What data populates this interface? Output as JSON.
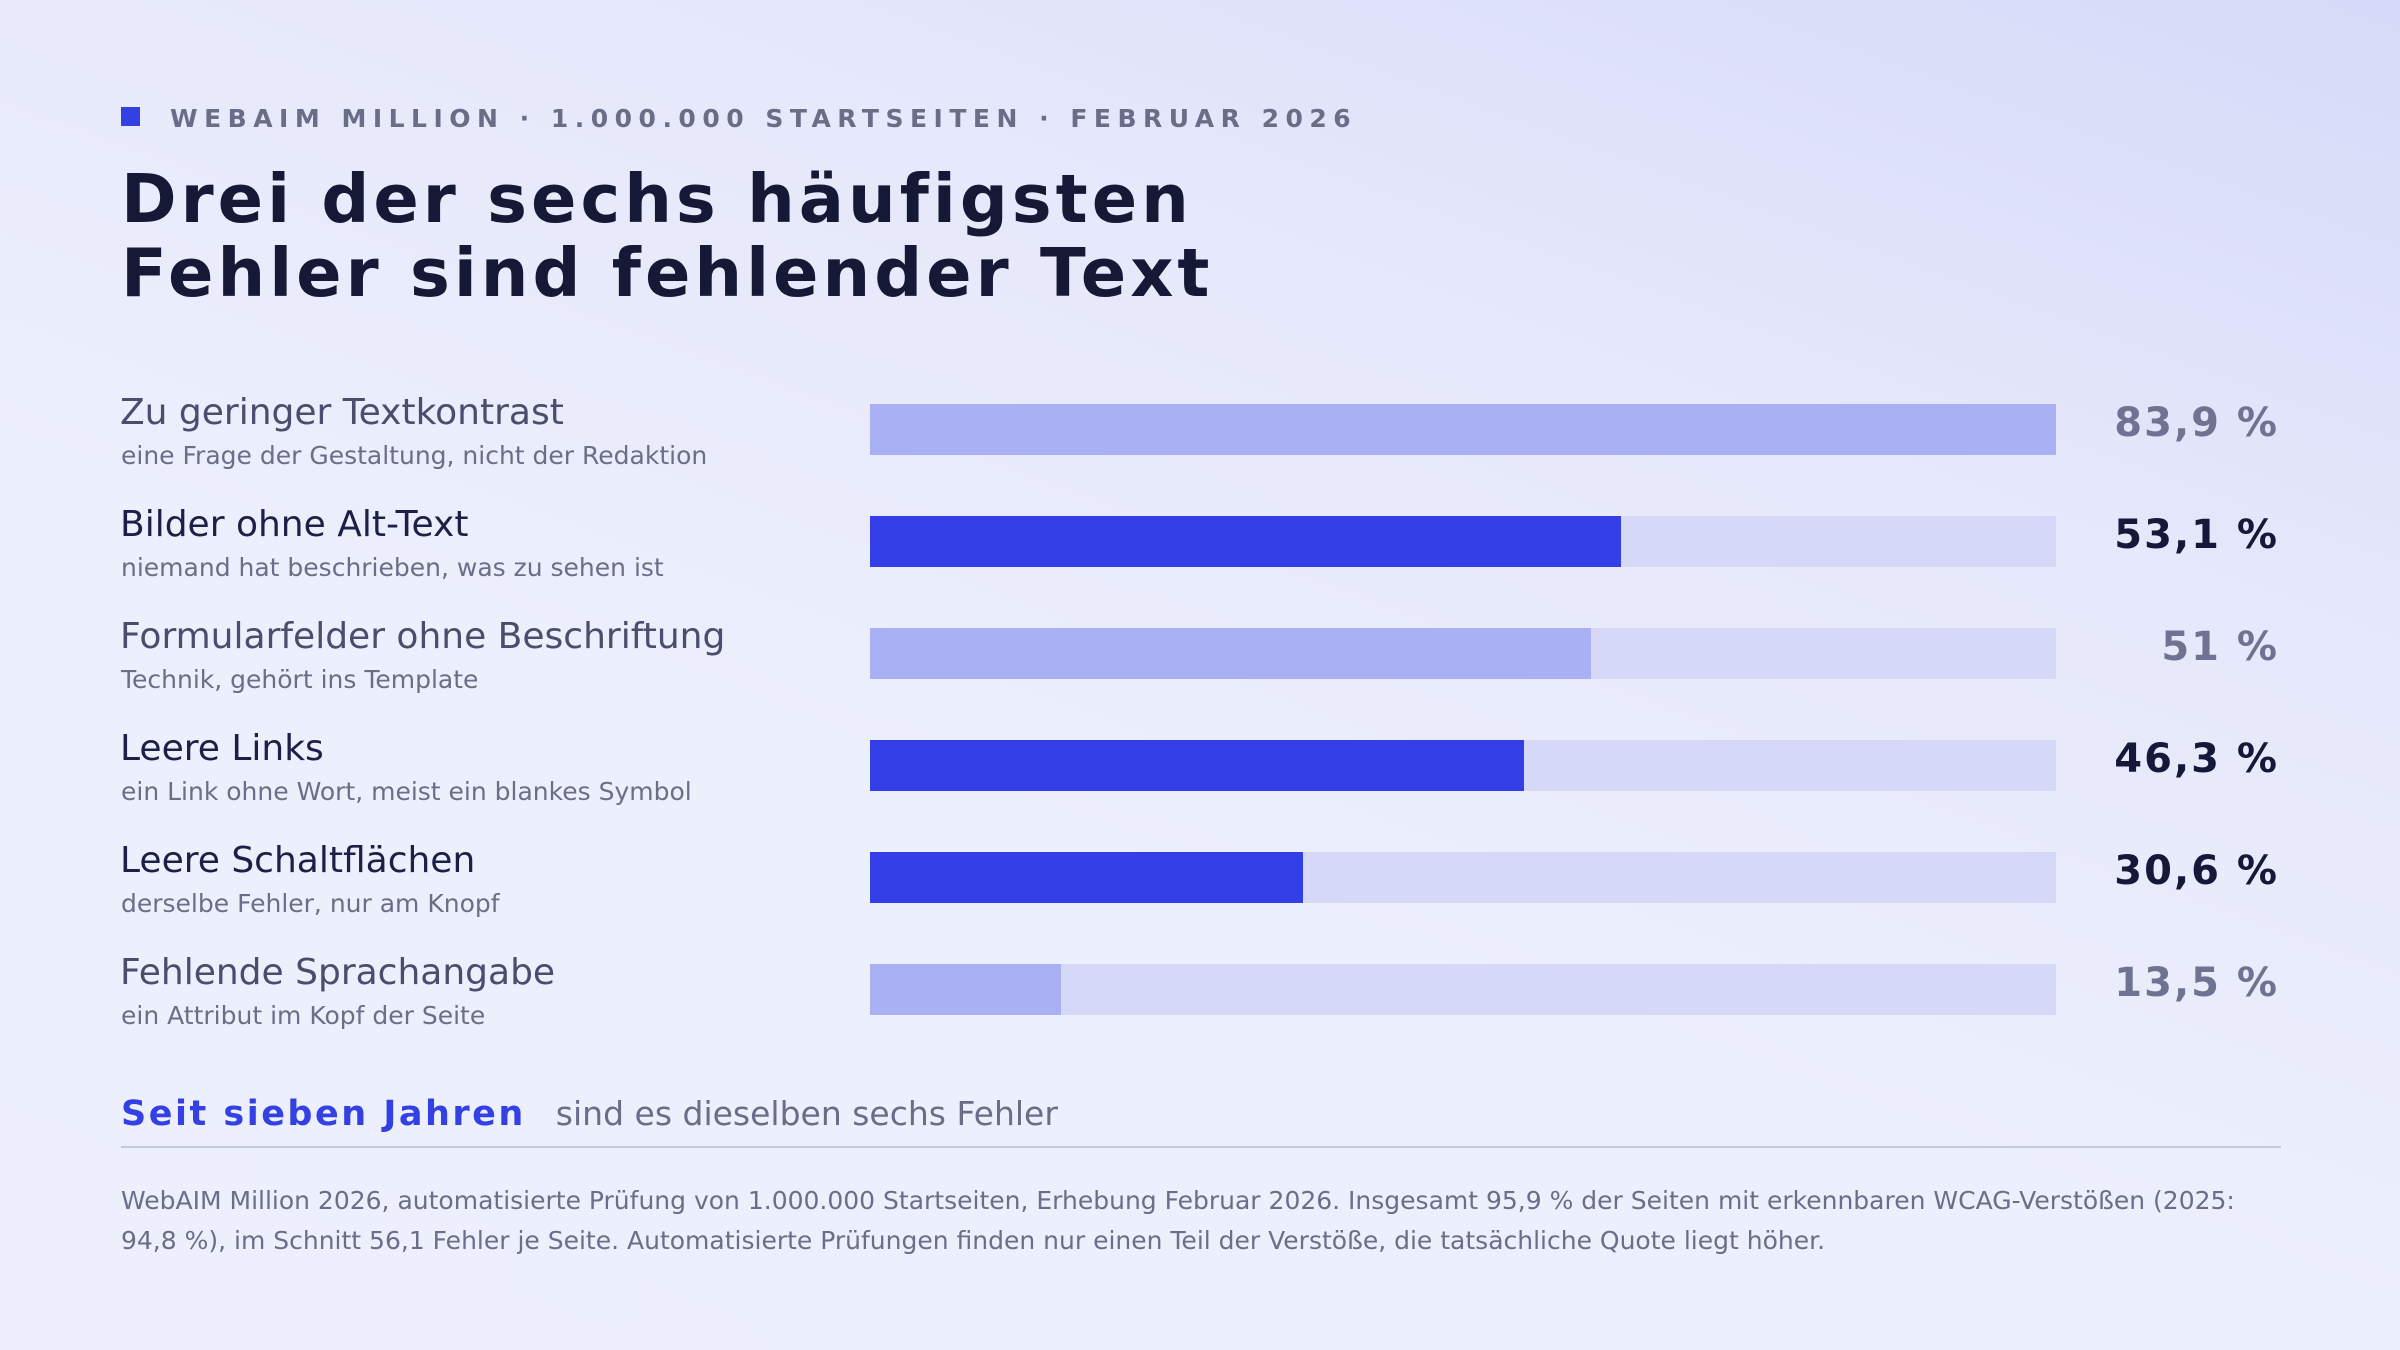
{
  "eyebrow": "WEBAIM MILLION · 1.000.000 STARTSEITEN · FEBRUAR 2026",
  "headline": {
    "line1": "Drei der sechs häufigsten",
    "line2": "Fehler sind fehlender Text"
  },
  "colors": {
    "accent": "#333ee6",
    "muted_bar": "#a9b0f3",
    "track": "#d5d8f7"
  },
  "chart_data": {
    "type": "bar",
    "orientation": "horizontal",
    "xlim": [
      0,
      83.9
    ],
    "categories": [
      "Zu geringer Textkontrast",
      "Bilder ohne Alt-Text",
      "Formularfelder ohne Beschriftung",
      "Leere Links",
      "Leere Schaltflächen",
      "Fehlende Sprachangabe"
    ],
    "rows": [
      {
        "label": "Zu geringer Textkontrast",
        "sub": "eine Frage der Gestaltung, nicht der Redaktion",
        "value": 83.9,
        "value_label": "83,9 %",
        "highlight": false
      },
      {
        "label": "Bilder ohne Alt-Text",
        "sub": "niemand hat beschrieben, was zu sehen ist",
        "value": 53.1,
        "value_label": "53,1 %",
        "highlight": true
      },
      {
        "label": "Formularfelder ohne Beschriftung",
        "sub": "Technik, gehört ins Template",
        "value": 51,
        "value_label": "51 %",
        "highlight": false
      },
      {
        "label": "Leere Links",
        "sub": "ein Link ohne Wort, meist ein blankes Symbol",
        "value": 46.3,
        "value_label": "46,3 %",
        "highlight": true
      },
      {
        "label": "Leere Schaltflächen",
        "sub": "derselbe Fehler, nur am Knopf",
        "value": 30.6,
        "value_label": "30,6 %",
        "highlight": true
      },
      {
        "label": "Fehlende Sprachangabe",
        "sub": "ein Attribut im Kopf der Seite",
        "value": 13.5,
        "value_label": "13,5 %",
        "highlight": false
      }
    ]
  },
  "footer": {
    "accent": "Seit sieben Jahren",
    "rest": "sind es dieselben sechs Fehler",
    "note": "WebAIM Million 2026, automatisierte Prüfung von 1.000.000 Startseiten, Erhebung Februar 2026. Insgesamt 95,9 % der Seiten mit erkennbaren WCAG-Verstößen (2025: 94,8 %), im Schnitt 56,1 Fehler je Seite. Automatisierte Prüfungen finden nur einen Teil der Verstöße, die tatsächliche Quote liegt höher."
  }
}
